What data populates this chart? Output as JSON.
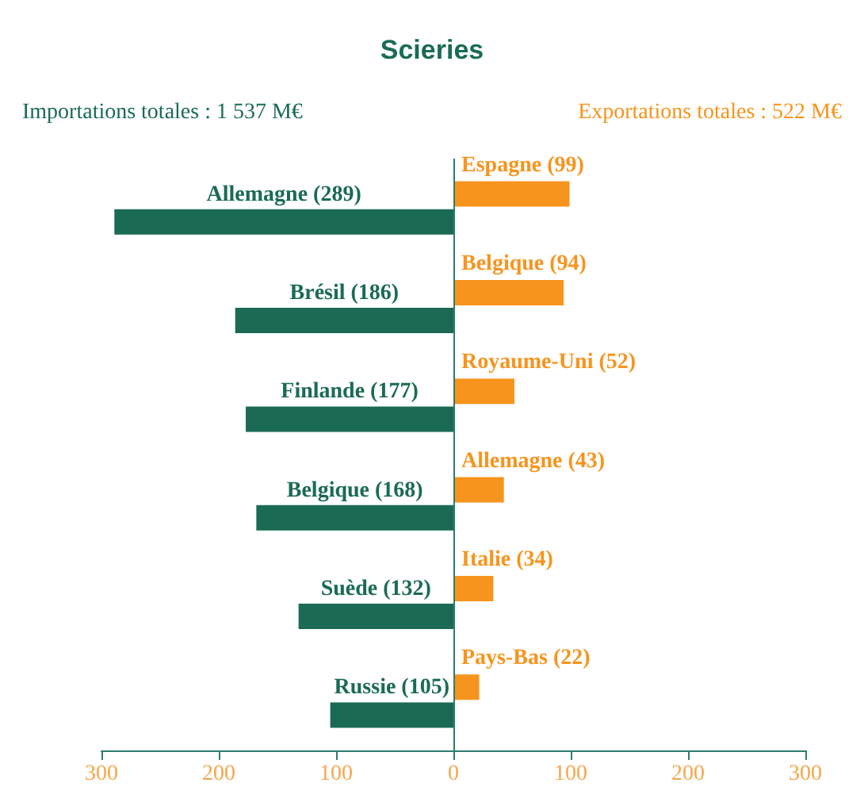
{
  "chart_data": {
    "type": "bar",
    "orientation": "horizontal",
    "title": "Scieries",
    "annotations": [
      "Importations totales : 1 537 M€",
      "Exportations totales : 522 M€"
    ],
    "categories": [
      null,
      null,
      null,
      null,
      null,
      null
    ],
    "series": [
      {
        "color": "#f7941d",
        "values": [
          99,
          94,
          52,
          43,
          34,
          22
        ],
        "value_labels": [
          "Espagne (99)",
          "Belgique (94)",
          "Royaume-Uni (52)",
          "Allemagne (43)",
          "Italie (34)",
          "Pays-Bas (22)"
        ]
      },
      {
        "color": "#1b6b54",
        "values": [
          -289,
          -186,
          -177,
          -168,
          -132,
          -105
        ],
        "value_labels": [
          "Allemagne (289)",
          "Brésil (186)",
          "Finlande (177)",
          "Belgique (168)",
          "Suède (132)",
          "Russie (105)"
        ]
      }
    ],
    "ref_lines": [
      {
        "axis": "x",
        "value": 0,
        "color": "#2e7d6e"
      }
    ],
    "xlim": [
      -300,
      300
    ],
    "xticks": [
      {
        "value": -300,
        "label": "300"
      },
      {
        "value": -200,
        "label": "200"
      },
      {
        "value": -100,
        "label": "100"
      },
      0,
      100,
      200,
      300
    ]
  }
}
